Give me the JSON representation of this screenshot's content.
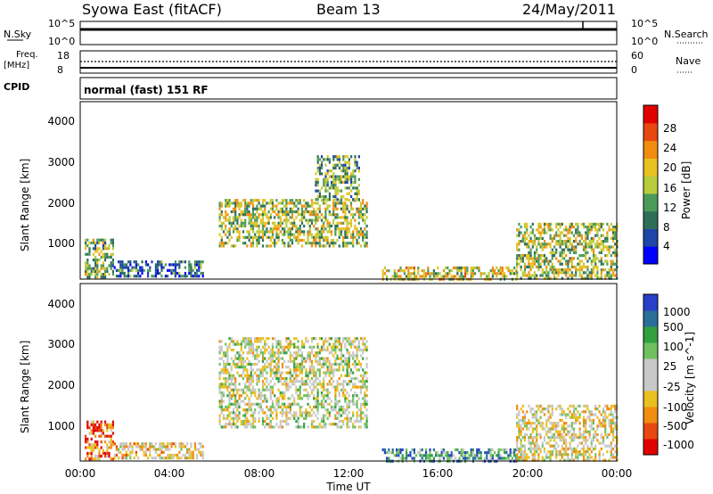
{
  "header": {
    "station": "Syowa East (fitACF)",
    "beam": "Beam 13",
    "date": "24/May/2011"
  },
  "top_panels": {
    "nsky_label": "N.Sky",
    "nsky_ticks": [
      "10^5",
      "10^0"
    ],
    "nsearch_label": "N.Search",
    "nsearch_ticks": [
      "10^5",
      "10^0"
    ],
    "freq_label": "Freq.",
    "freq_unit": "[MHz]",
    "freq_ticks": [
      "18",
      "8"
    ],
    "nave_label": "Nave",
    "nave_ticks": [
      "60",
      "0"
    ],
    "cpid_label": "CPID",
    "cpid_text": "normal (fast) 151 RF"
  },
  "axes": {
    "ylabel": "Slant Range [km]",
    "xlabel": "Time UT",
    "yticks": [
      "4000",
      "3000",
      "2000",
      "1000"
    ],
    "xticks": [
      "00:00",
      "04:00",
      "08:00",
      "12:00",
      "16:00",
      "20:00",
      "00:00"
    ]
  },
  "chart_data": [
    {
      "type": "heatmap",
      "title": "",
      "xlabel": "Time UT",
      "ylabel": "Slant Range [km]",
      "xlim": [
        0,
        24
      ],
      "ylim": [
        180,
        4650
      ],
      "colorbar": {
        "label": "Power [dB]",
        "ticks": [
          "28",
          "24",
          "20",
          "16",
          "12",
          "8",
          "4"
        ],
        "colors": [
          "#0000ff",
          "#1f45a8",
          "#2e6e58",
          "#4c9a5a",
          "#b8cc3c",
          "#e8c020",
          "#f08c10",
          "#e84810",
          "#e00000"
        ]
      },
      "regions": [
        {
          "t0": 0.2,
          "t1": 1.5,
          "r0": 200,
          "r1": 1200,
          "level": 0.45
        },
        {
          "t0": 1.5,
          "t1": 5.5,
          "r0": 250,
          "r1": 650,
          "level": 0.25
        },
        {
          "t0": 6.2,
          "t1": 12.8,
          "r0": 1000,
          "r1": 2200,
          "level": 0.5
        },
        {
          "t0": 10.5,
          "t1": 12.5,
          "r0": 2200,
          "r1": 3300,
          "level": 0.4
        },
        {
          "t0": 13.5,
          "t1": 19.5,
          "r0": 200,
          "r1": 500,
          "level": 0.55
        },
        {
          "t0": 19.5,
          "t1": 24,
          "r0": 200,
          "r1": 1600,
          "level": 0.5
        }
      ]
    },
    {
      "type": "heatmap",
      "title": "",
      "xlabel": "Time UT",
      "ylabel": "Slant Range [km]",
      "xlim": [
        0,
        24
      ],
      "ylim": [
        180,
        4650
      ],
      "colorbar": {
        "label": "Velocity [m s^-1]",
        "ticks": [
          "1000",
          "500",
          "100",
          "25",
          "-25",
          "-100",
          "-500",
          "-1000"
        ],
        "colors": [
          "#e00000",
          "#e84810",
          "#f08c10",
          "#e8c020",
          "#c8c8c8",
          "#c8c8c8",
          "#70c060",
          "#30a040",
          "#2a6e9a",
          "#2840c8"
        ]
      },
      "regions": [
        {
          "t0": 0.2,
          "t1": 1.5,
          "r0": 200,
          "r1": 1200,
          "level": 0.2
        },
        {
          "t0": 1.5,
          "t1": 5.5,
          "r0": 250,
          "r1": 650,
          "level": 0.4
        },
        {
          "t0": 6.2,
          "t1": 12.8,
          "r0": 1000,
          "r1": 3300,
          "level": 0.5
        },
        {
          "t0": 13.5,
          "t1": 19.5,
          "r0": 200,
          "r1": 500,
          "level": 0.75
        },
        {
          "t0": 19.5,
          "t1": 24,
          "r0": 200,
          "r1": 1600,
          "level": 0.45
        }
      ]
    }
  ]
}
